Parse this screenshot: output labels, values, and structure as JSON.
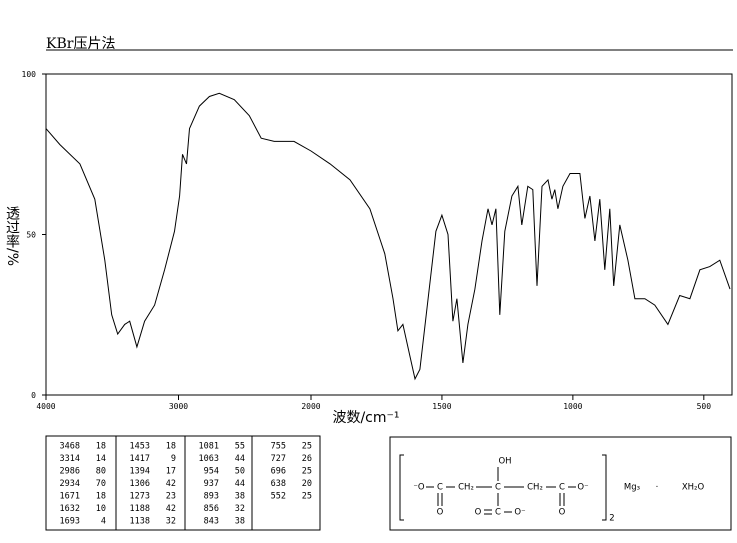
{
  "chart_data": {
    "type": "line",
    "title": "KBr压片法",
    "xlabel": "波数/cm⁻¹",
    "ylabel": "透过率/%",
    "color": "#000000",
    "xlim": [
      4000,
      400
    ],
    "x_scale_break": 2000,
    "xticks": [
      4000,
      3000,
      2000,
      1500,
      1000,
      500
    ],
    "ylim": [
      0,
      100
    ],
    "yticks": [
      0,
      50,
      100
    ],
    "x": [
      4000,
      3895,
      3744,
      3632,
      3556,
      3504,
      3459,
      3406,
      3368,
      3314,
      3256,
      3180,
      3105,
      3030,
      2992,
      2970,
      2940,
      2917,
      2842,
      2767,
      2692,
      2579,
      2466,
      2376,
      2278,
      2128,
      2000,
      1927,
      1851,
      1775,
      1718,
      1687,
      1668,
      1649,
      1622,
      1603,
      1584,
      1553,
      1523,
      1500,
      1477,
      1458,
      1443,
      1420,
      1401,
      1374,
      1347,
      1324,
      1309,
      1294,
      1279,
      1260,
      1233,
      1210,
      1195,
      1172,
      1153,
      1137,
      1118,
      1095,
      1080,
      1069,
      1057,
      1038,
      1011,
      973,
      954,
      935,
      916,
      897,
      878,
      859,
      844,
      821,
      790,
      763,
      725,
      687,
      637,
      592,
      553,
      515,
      477,
      439,
      400
    ],
    "values": [
      83,
      78,
      72,
      61,
      42,
      25,
      19,
      22,
      23,
      15,
      23,
      28,
      39,
      51,
      62,
      75,
      72,
      83,
      90,
      93,
      94,
      92,
      87,
      80,
      79,
      79,
      76,
      72,
      67,
      58,
      44,
      30,
      20,
      22,
      12,
      5,
      8,
      30,
      51,
      56,
      50,
      23,
      30,
      10,
      22,
      33,
      48,
      58,
      53,
      58,
      25,
      51,
      62,
      65,
      53,
      65,
      64,
      34,
      65,
      67,
      61,
      64,
      58,
      65,
      69,
      69,
      55,
      62,
      48,
      61,
      39,
      58,
      34,
      53,
      42,
      30,
      30,
      28,
      22,
      31,
      30,
      39,
      40,
      42,
      33
    ]
  },
  "peak_table": {
    "groups": [
      [
        [
          "3468",
          "18"
        ],
        [
          "3314",
          "14"
        ],
        [
          "2986",
          "80"
        ],
        [
          "2934",
          "70"
        ],
        [
          "1671",
          "18"
        ],
        [
          "1632",
          "10"
        ],
        [
          "1693",
          "4"
        ]
      ],
      [
        [
          "1453",
          "18"
        ],
        [
          "1417",
          "9"
        ],
        [
          "1394",
          "17"
        ],
        [
          "1306",
          "42"
        ],
        [
          "1273",
          "23"
        ],
        [
          "1188",
          "42"
        ],
        [
          "1138",
          "32"
        ]
      ],
      [
        [
          "1081",
          "55"
        ],
        [
          "1063",
          "44"
        ],
        [
          "954",
          "50"
        ],
        [
          "937",
          "44"
        ],
        [
          "893",
          "38"
        ],
        [
          "856",
          "32"
        ],
        [
          "843",
          "38"
        ]
      ],
      [
        [
          "755",
          "25"
        ],
        [
          "727",
          "26"
        ],
        [
          "696",
          "25"
        ],
        [
          "638",
          "20"
        ],
        [
          "552",
          "25"
        ]
      ]
    ]
  },
  "structure": {
    "labels": [
      "⁻O",
      "C",
      "CH₂",
      "C",
      "CH₂",
      "C",
      "O⁻",
      "OH",
      "O",
      "O",
      "C",
      "O⁻",
      "O",
      "2",
      "Mg₃",
      "·",
      "XH₂O"
    ]
  }
}
